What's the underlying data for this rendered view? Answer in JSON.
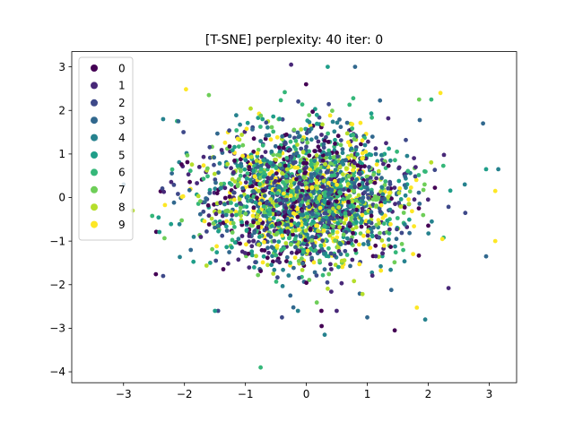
{
  "chart_data": {
    "type": "scatter",
    "title": "[T-SNE] perplexity: 40 iter: 0",
    "xlabel": "",
    "ylabel": "",
    "xlim": [
      -3.85,
      3.45
    ],
    "ylim": [
      -4.25,
      3.35
    ],
    "x_ticks": [
      -3,
      -2,
      -1,
      0,
      1,
      2,
      3
    ],
    "y_ticks": [
      -4,
      -3,
      -2,
      -1,
      0,
      1,
      2,
      3
    ],
    "grid": false,
    "legend_position": "top-left",
    "cloud": {
      "center": [
        0.0,
        0.0
      ],
      "spread": [
        0.82,
        0.82
      ],
      "points_per_class": 230
    },
    "series": [
      {
        "name": "0",
        "color": "#440154"
      },
      {
        "name": "1",
        "color": "#482878"
      },
      {
        "name": "2",
        "color": "#3e4989"
      },
      {
        "name": "3",
        "color": "#31688e"
      },
      {
        "name": "4",
        "color": "#26828e"
      },
      {
        "name": "5",
        "color": "#1f9e89"
      },
      {
        "name": "6",
        "color": "#35b779"
      },
      {
        "name": "7",
        "color": "#6ece58"
      },
      {
        "name": "8",
        "color": "#b5de2b"
      },
      {
        "name": "9",
        "color": "#fde725"
      }
    ],
    "outliers": [
      {
        "x": -0.75,
        "y": -3.9,
        "series": "6"
      },
      {
        "x": 1.45,
        "y": -3.05,
        "series": "0"
      },
      {
        "x": 0.3,
        "y": -3.15,
        "series": "4"
      },
      {
        "x": -2.85,
        "y": -0.3,
        "series": "8"
      },
      {
        "x": -3.45,
        "y": 1.35,
        "series": "3"
      },
      {
        "x": -0.25,
        "y": 3.05,
        "series": "1"
      },
      {
        "x": 0.8,
        "y": 3.0,
        "series": "3"
      },
      {
        "x": 0.35,
        "y": 3.0,
        "series": "5"
      },
      {
        "x": 2.2,
        "y": 2.4,
        "series": "9"
      },
      {
        "x": -1.6,
        "y": 2.35,
        "series": "7"
      },
      {
        "x": 3.15,
        "y": 0.65,
        "series": "4"
      },
      {
        "x": 3.1,
        "y": 0.15,
        "series": "9"
      },
      {
        "x": 3.1,
        "y": -1.0,
        "series": "9"
      },
      {
        "x": 2.95,
        "y": 0.65,
        "series": "5"
      },
      {
        "x": 2.95,
        "y": -1.35,
        "series": "3"
      },
      {
        "x": 2.9,
        "y": 1.7,
        "series": "3"
      },
      {
        "x": 1.95,
        "y": -2.8,
        "series": "4"
      },
      {
        "x": 1.0,
        "y": -2.75,
        "series": "3"
      },
      {
        "x": 0.25,
        "y": -2.95,
        "series": "0"
      },
      {
        "x": -0.4,
        "y": -2.75,
        "series": "2"
      },
      {
        "x": -1.5,
        "y": -2.6,
        "series": "5"
      },
      {
        "x": -2.35,
        "y": -1.8,
        "series": "2"
      },
      {
        "x": -2.1,
        "y": 1.75,
        "series": "3"
      },
      {
        "x": -2.35,
        "y": 1.8,
        "series": "4"
      },
      {
        "x": 2.05,
        "y": 2.25,
        "series": "6"
      },
      {
        "x": 1.85,
        "y": 2.25,
        "series": "7"
      },
      {
        "x": 2.6,
        "y": 0.3,
        "series": "4"
      },
      {
        "x": -3.0,
        "y": 0.3,
        "series": "3"
      }
    ]
  }
}
